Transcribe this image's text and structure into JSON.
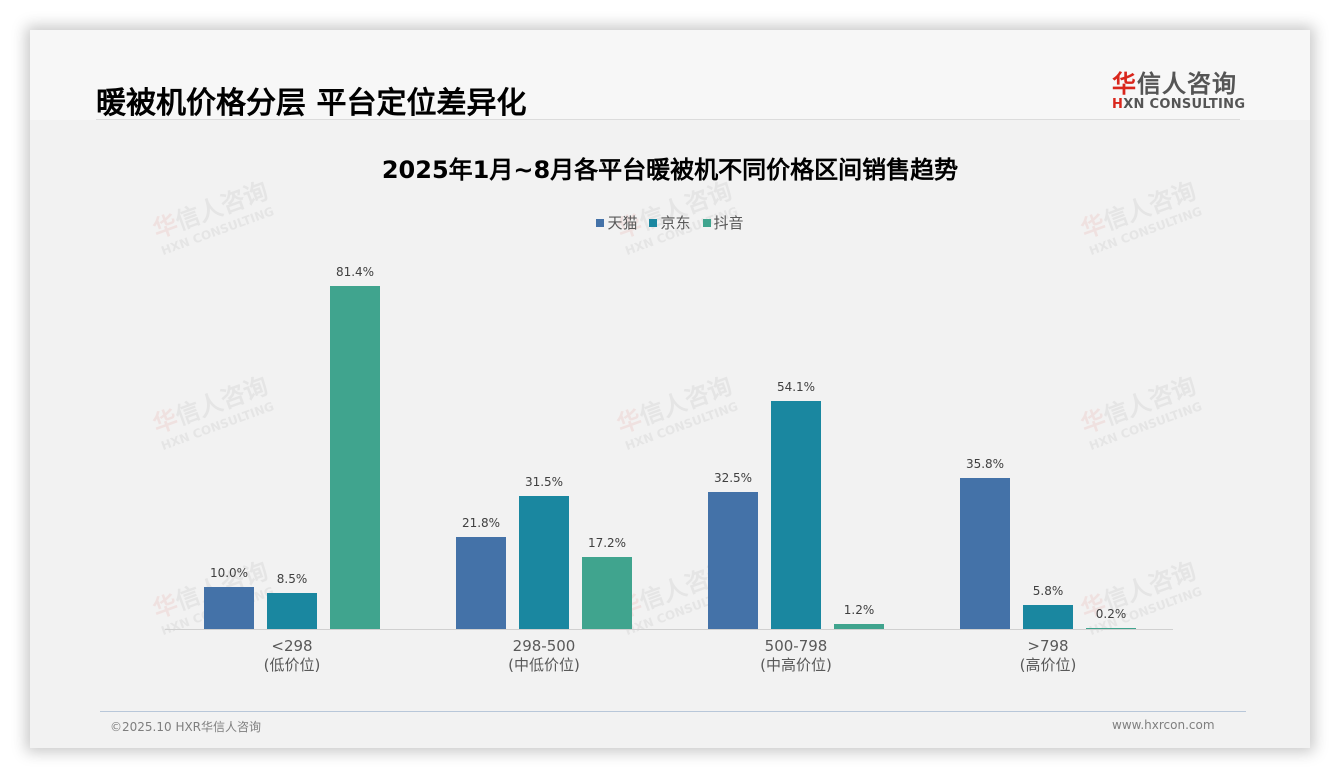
{
  "header": {
    "title": "暖被机价格分层 平台定位差异化",
    "logo": {
      "cn_first": "华",
      "cn_rest": "信人咨询",
      "en_first": "H",
      "en_rest": "XN CONSULTING"
    }
  },
  "watermark": {
    "cn_first": "华",
    "cn_rest": "信人咨询",
    "en": "HXN CONSULTING"
  },
  "chart_data": {
    "type": "bar",
    "title": "2025年1月~8月各平台暖被机不同价格区间销售趋势",
    "categories": [
      "<298 (低价位)",
      "298-500 (中低价位)",
      "500-798 (中高价位)",
      ">798 (高价位)"
    ],
    "category_lines": [
      [
        "<298",
        "(低价位)"
      ],
      [
        "298-500",
        "(中低价位)"
      ],
      [
        "500-798",
        "(中高价位)"
      ],
      [
        ">798",
        "(高价位)"
      ]
    ],
    "series": [
      {
        "name": "天猫",
        "color": "#4472a8",
        "values": [
          10.0,
          21.8,
          32.5,
          35.8
        ],
        "labels": [
          "10.0%",
          "21.8%",
          "32.5%",
          "35.8%"
        ]
      },
      {
        "name": "京东",
        "color": "#1a87a0",
        "values": [
          8.5,
          31.5,
          54.1,
          5.8
        ],
        "labels": [
          "8.5%",
          "31.5%",
          "54.1%",
          "5.8%"
        ]
      },
      {
        "name": "抖音",
        "color": "#40a48e",
        "values": [
          81.4,
          17.2,
          1.2,
          0.2
        ],
        "labels": [
          "81.4%",
          "17.2%",
          "1.2%",
          "0.2%"
        ]
      }
    ],
    "xlabel": "",
    "ylabel": "",
    "unit": "%",
    "ylim": [
      0,
      100
    ],
    "grid": false,
    "legend_position": "top",
    "data_labels": true
  },
  "footer": {
    "copyright": "©2025.10 HXR华信人咨询",
    "website": "www.hxrcon.com"
  }
}
